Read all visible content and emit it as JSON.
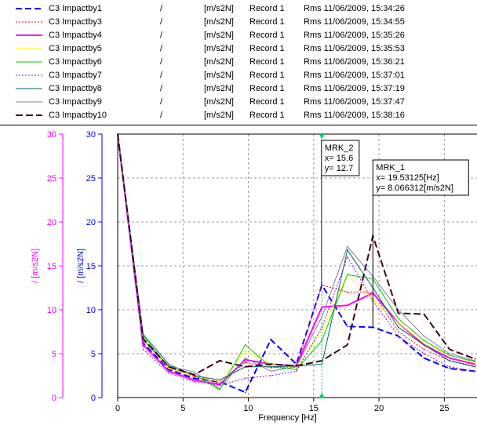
{
  "legend": [
    {
      "name": "C3 Impactby1",
      "slash": "/",
      "unit": "[m/s2N]",
      "record": "Record  1",
      "rms": "Rms  11/06/2009, 15:34:26",
      "color": "#0000ff",
      "dash": "8,4",
      "width": 2
    },
    {
      "name": "C3 Impactby3",
      "slash": "/",
      "unit": "[m/s2N]",
      "record": "Record  1",
      "rms": "Rms  11/06/2009, 15:34:55",
      "color": "#ff0000",
      "dash": "2,2",
      "width": 1
    },
    {
      "name": "C3 Impactby4",
      "slash": "/",
      "unit": "[m/s2N]",
      "record": "Record  1",
      "rms": "Rms  11/06/2009, 15:35:26",
      "color": "#ff00ff",
      "dash": "",
      "width": 2
    },
    {
      "name": "C3 Impactby5",
      "slash": "/",
      "unit": "[m/s2N]",
      "record": "Record  1",
      "rms": "Rms  11/06/2009, 15:35:53",
      "color": "#ffff00",
      "dash": "",
      "width": 1
    },
    {
      "name": "C3 Impactby6",
      "slash": "/",
      "unit": "[m/s2N]",
      "record": "Record  1",
      "rms": "Rms  11/06/2009, 15:36:21",
      "color": "#00cc00",
      "dash": "",
      "width": 1
    },
    {
      "name": "C3 Impactby7",
      "slash": "/",
      "unit": "[m/s2N]",
      "record": "Record  1",
      "rms": "Rms  11/06/2009, 15:37:01",
      "color": "#9900ff",
      "dash": "2,2",
      "width": 1
    },
    {
      "name": "C3 Impactby8",
      "slash": "/",
      "unit": "[m/s2N]",
      "record": "Record  1",
      "rms": "Rms  11/06/2009, 15:37:19",
      "color": "#006666",
      "dash": "",
      "width": 1
    },
    {
      "name": "C3 Impactby9",
      "slash": "/",
      "unit": "[m/s2N]",
      "record": "Record  1",
      "rms": "Rms  11/06/2009, 15:37:47",
      "color": "#8080a0",
      "dash": "",
      "width": 1
    },
    {
      "name": "C3 Impactby10",
      "slash": "/",
      "unit": "[m/s2N]",
      "record": "Record  1",
      "rms": "Rms  11/06/2009, 15:38:16",
      "color": "#400020",
      "dash": "9,4",
      "width": 2
    }
  ],
  "chart_data": {
    "type": "line",
    "xlabel": "Frequency [Hz]",
    "ylabel_left": "/ [m/s2N]",
    "ylabel_right": "/ [m/s2N]",
    "left_axis_color": "#ff00ff",
    "right_axis_color": "#0000ff",
    "xlim": [
      0,
      27.5
    ],
    "ylim": [
      0,
      30
    ],
    "x_ticks": [
      0,
      5,
      10,
      15,
      20,
      25
    ],
    "y_ticks": [
      0,
      5,
      10,
      15,
      20,
      25,
      30
    ],
    "grid": true,
    "x": [
      0,
      1.95,
      3.91,
      5.86,
      7.81,
      9.77,
      11.72,
      13.67,
      15.63,
      17.58,
      19.53,
      21.48,
      23.44,
      25.39,
      27.34
    ],
    "series": [
      {
        "name": "C3 Impactby1",
        "color": "#0000ff",
        "dash": "8,4",
        "width": 2,
        "values": [
          30,
          6.2,
          3.2,
          2.2,
          1.8,
          0.6,
          6.6,
          3.8,
          12.8,
          8.1,
          8.0,
          7.0,
          4.5,
          3.3,
          3.0
        ]
      },
      {
        "name": "C3 Impactby3",
        "color": "#ff0000",
        "dash": "2,2",
        "width": 1,
        "values": [
          30,
          6.5,
          3.4,
          2.4,
          1.6,
          4.0,
          3.4,
          3.5,
          12.8,
          12.0,
          12.0,
          7.5,
          5.5,
          4.2,
          3.6
        ]
      },
      {
        "name": "C3 Impactby4",
        "color": "#ff00ff",
        "dash": "",
        "width": 2,
        "values": [
          30,
          6.0,
          3.0,
          2.0,
          1.5,
          4.3,
          3.8,
          3.6,
          10.3,
          10.5,
          11.9,
          8.5,
          6.0,
          4.5,
          3.8
        ]
      },
      {
        "name": "C3 Impactby5",
        "color": "#ffff00",
        "dash": "",
        "width": 1,
        "values": [
          30,
          6.8,
          3.3,
          2.5,
          1.8,
          5.3,
          3.8,
          3.4,
          7.5,
          14.0,
          11.2,
          8.5,
          6.2,
          4.8,
          4.0
        ]
      },
      {
        "name": "C3 Impactby6",
        "color": "#00cc00",
        "dash": "",
        "width": 1,
        "values": [
          30,
          7.0,
          3.5,
          2.6,
          0.9,
          6.0,
          3.5,
          3.2,
          6.5,
          14.0,
          13.5,
          9.0,
          6.5,
          4.8,
          4.1
        ]
      },
      {
        "name": "C3 Impactby7",
        "color": "#9900ff",
        "dash": "2,2",
        "width": 1,
        "values": [
          30,
          5.5,
          2.8,
          1.8,
          1.4,
          2.2,
          2.5,
          3.0,
          8.0,
          16.0,
          11.0,
          7.0,
          5.0,
          3.5,
          3.0
        ]
      },
      {
        "name": "C3 Impactby8",
        "color": "#006666",
        "dash": "",
        "width": 1,
        "values": [
          30,
          7.2,
          3.8,
          2.5,
          2.0,
          3.5,
          3.5,
          3.6,
          3.8,
          16.8,
          12.5,
          8.0,
          6.0,
          4.2,
          3.5
        ]
      },
      {
        "name": "C3 Impactby9",
        "color": "#8080a0",
        "dash": "",
        "width": 1,
        "values": [
          30,
          6.5,
          3.6,
          2.9,
          1.0,
          4.5,
          3.0,
          3.5,
          9.2,
          17.2,
          13.8,
          10.0,
          7.0,
          5.0,
          4.2
        ]
      },
      {
        "name": "C3 Impactby10",
        "color": "#400020",
        "dash": "9,4",
        "width": 2,
        "values": [
          30,
          6.7,
          3.5,
          2.6,
          4.2,
          3.5,
          3.8,
          3.6,
          4.2,
          6.0,
          18.4,
          9.6,
          9.5,
          5.5,
          4.4
        ]
      }
    ],
    "markers": [
      {
        "name": "MRK_2",
        "x": 15.6,
        "y": 12.7,
        "color": "#800040",
        "label_lines": [
          "MRK_2",
          "x= 15.6",
          "y= 12.7"
        ]
      },
      {
        "name": "MRK_1",
        "x": 19.53125,
        "y": 8.066312,
        "color": "#000000",
        "label_lines": [
          "MRK_1",
          "x= 19.53125[Hz]",
          "y= 8.066312[m/s2N]"
        ]
      }
    ],
    "cursor_line": {
      "x": 15.62,
      "color": "#00cc66"
    }
  }
}
